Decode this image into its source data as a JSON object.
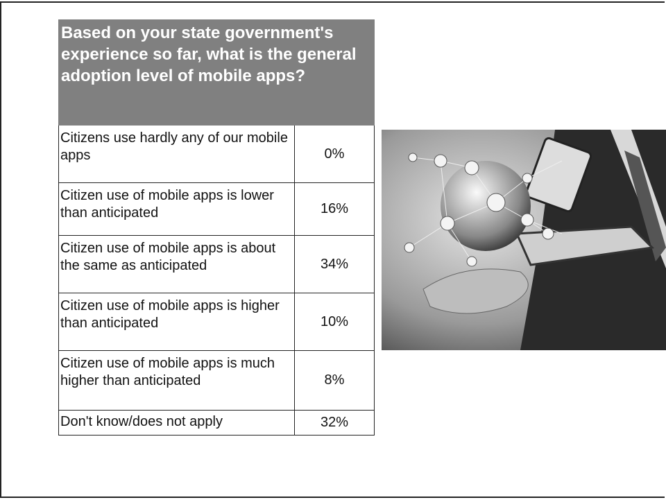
{
  "table": {
    "header": "Based on your state government's experience so far, what is  the general adoption level of mobile apps?",
    "rows": [
      [
        "Citizens use hardly any of our mobile apps",
        "0%"
      ],
      [
        "Citizen use of mobile apps is lower than anticipated",
        "16%"
      ],
      [
        "Citizen use of mobile apps is about the same as anticipated",
        "34%"
      ],
      [
        "Citizen use of mobile apps is higher than anticipated",
        "10%"
      ],
      [
        "Citizen use of mobile apps is much higher than anticipated",
        "8%"
      ],
      [
        "Don't know/does not apply",
        "32%"
      ]
    ]
  }
}
